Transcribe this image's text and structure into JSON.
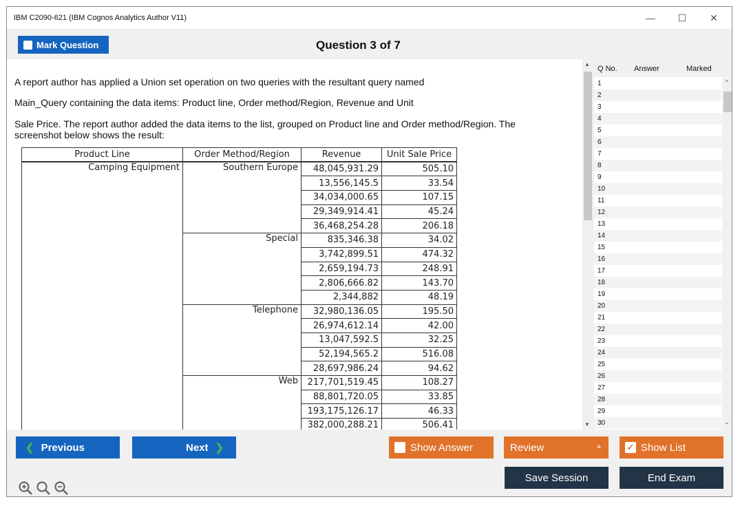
{
  "window": {
    "title": "IBM C2090-621 (IBM Cognos Analytics Author V11)",
    "min_icon": "minimize-icon",
    "max_icon": "maximize-icon",
    "close_icon": "close-icon"
  },
  "header": {
    "mark_label": "Mark Question",
    "question_title": "Question 3 of 7"
  },
  "question": {
    "line1": "A report author has applied a Union set operation on two queries with the resultant query named",
    "line2": "Main_Query containing the data items: Product line, Order method/Region, Revenue and Unit",
    "line3": "Sale Price. The report author added the data items to the list, grouped on Product line and Order method/Region. The",
    "line4": "screenshot below shows the result:"
  },
  "table": {
    "headers": [
      "Product Line",
      "Order Method/Region",
      "Revenue",
      "Unit Sale Price"
    ],
    "product_line": "Camping Equipment",
    "groups": [
      {
        "region": "Southern Europe",
        "rows": [
          [
            "48,045,931.29",
            "505.10"
          ],
          [
            "13,556,145.5",
            "33.54"
          ],
          [
            "34,034,000.65",
            "107.15"
          ],
          [
            "29,349,914.41",
            "45.24"
          ],
          [
            "36,468,254.28",
            "206.18"
          ]
        ]
      },
      {
        "region": "Special",
        "rows": [
          [
            "835,346.38",
            "34.02"
          ],
          [
            "3,742,899.51",
            "474.32"
          ],
          [
            "2,659,194.73",
            "248.91"
          ],
          [
            "2,806,666.82",
            "143.70"
          ],
          [
            "2,344,882",
            "48.19"
          ]
        ]
      },
      {
        "region": "Telephone",
        "rows": [
          [
            "32,980,136.05",
            "195.50"
          ],
          [
            "26,974,612.14",
            "42.00"
          ],
          [
            "13,047,592.5",
            "32.25"
          ],
          [
            "52,194,565.2",
            "516.08"
          ],
          [
            "28,697,986.24",
            "94.62"
          ]
        ]
      },
      {
        "region": "Web",
        "rows": [
          [
            "217,701,519.45",
            "108.27"
          ],
          [
            "88,801,720.05",
            "33.85"
          ],
          [
            "193,175,126.17",
            "46.33"
          ],
          [
            "382,000,288.21",
            "506.41"
          ]
        ]
      }
    ]
  },
  "qlist": {
    "col_qno": "Q No.",
    "col_answer": "Answer",
    "col_marked": "Marked",
    "numbers": [
      "1",
      "2",
      "3",
      "4",
      "5",
      "6",
      "7",
      "8",
      "9",
      "10",
      "11",
      "12",
      "13",
      "14",
      "15",
      "16",
      "17",
      "18",
      "19",
      "20",
      "21",
      "22",
      "23",
      "24",
      "25",
      "26",
      "27",
      "28",
      "29",
      "30"
    ]
  },
  "footer": {
    "previous": "Previous",
    "next": "Next",
    "show_answer": "Show Answer",
    "review": "Review",
    "show_list": "Show List",
    "save_session": "Save Session",
    "end_exam": "End Exam",
    "zoom_in_icon": "zoom-in-icon",
    "zoom_reset_icon": "zoom-reset-icon",
    "zoom_out_icon": "zoom-out-icon"
  },
  "colors": {
    "blue": "#1565c0",
    "orange": "#e0722a",
    "dark": "#243447"
  }
}
